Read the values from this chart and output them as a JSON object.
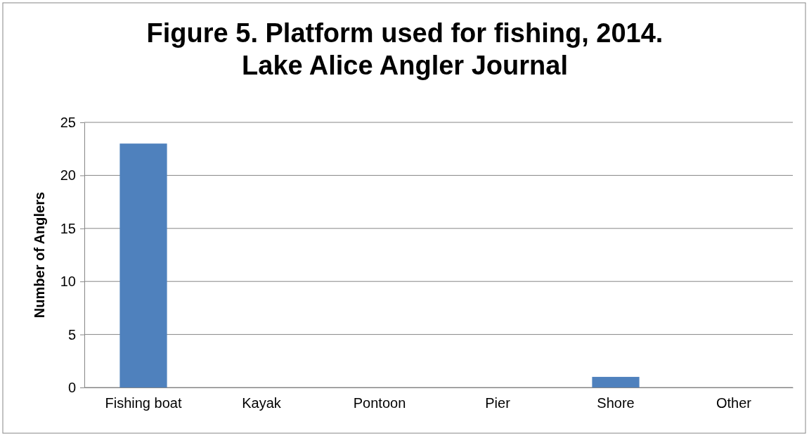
{
  "chart_data": {
    "type": "bar",
    "title": "Figure 5. Platform used for fishing, 2014.\nLake Alice Angler Journal",
    "ylabel": "Number of Anglers",
    "categories": [
      "Fishing boat",
      "Kayak",
      "Pontoon",
      "Pier",
      "Shore",
      "Other"
    ],
    "values": [
      23,
      0,
      0,
      0,
      1,
      0
    ],
    "color": "#4f81bd",
    "ylim": [
      0,
      25
    ],
    "yticks": [
      0,
      5,
      10,
      15,
      20,
      25
    ],
    "grid": "y"
  }
}
